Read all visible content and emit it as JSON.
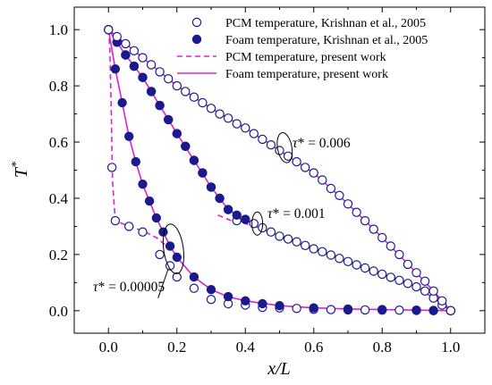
{
  "chart_data": {
    "type": "scatter",
    "xlabel": "x/L",
    "ylabel": "T*",
    "xlim": [
      -0.1,
      1.1
    ],
    "ylim": [
      -0.08,
      1.08
    ],
    "x_ticks": [
      "0.0",
      "0.2",
      "0.4",
      "0.6",
      "0.8",
      "1.0"
    ],
    "y_ticks": [
      "0.0",
      "0.2",
      "0.4",
      "0.6",
      "0.8",
      "1.0"
    ],
    "grid": false,
    "legend_position": "top-right",
    "legend": [
      {
        "label": "PCM temperature, Krishnan et al., 2005",
        "style": "open-circle"
      },
      {
        "label": "Foam temperature, Krishnan et al., 2005",
        "style": "filled-circle"
      },
      {
        "label": "PCM temperature, present work",
        "style": "dashed-line"
      },
      {
        "label": "Foam temperature, present work",
        "style": "solid-line"
      }
    ],
    "annotations": [
      {
        "text": "τ* = 0.006",
        "x": 0.52,
        "y": 0.58
      },
      {
        "text": "τ* = 0.001",
        "x": 0.45,
        "y": 0.3
      },
      {
        "text": "τ* = 0.00005",
        "x": 0.17,
        "y": 0.22
      }
    ],
    "colors": {
      "marker": "#1a1a8c",
      "line": "#e020d0"
    },
    "series": [
      {
        "name": "PCM temperature, present work",
        "group": "τ* = 0.00005",
        "style": "dashed",
        "x": [
          0.0,
          0.004,
          0.008,
          0.012,
          0.02,
          0.06,
          0.1,
          0.14,
          0.18,
          0.2
        ],
        "y": [
          1.0,
          0.93,
          0.72,
          0.46,
          0.32,
          0.3,
          0.285,
          0.26,
          0.22,
          0.2
        ]
      },
      {
        "name": "Foam temperature, present work",
        "group": "τ* = 0.00005",
        "style": "solid",
        "x": [
          0.0,
          0.02,
          0.04,
          0.06,
          0.08,
          0.1,
          0.12,
          0.14,
          0.16,
          0.18,
          0.2,
          0.25,
          0.3,
          0.35,
          0.4,
          0.5,
          0.6,
          0.7,
          0.8,
          0.9,
          1.0
        ],
        "y": [
          1.0,
          0.86,
          0.74,
          0.62,
          0.53,
          0.45,
          0.39,
          0.33,
          0.28,
          0.23,
          0.19,
          0.12,
          0.075,
          0.05,
          0.035,
          0.018,
          0.01,
          0.006,
          0.004,
          0.002,
          0.0
        ]
      },
      {
        "name": "PCM temperature, present work",
        "group": "τ* = 0.001",
        "style": "dashed",
        "x": [
          0.32,
          0.36,
          0.4,
          0.44
        ],
        "y": [
          0.34,
          0.32,
          0.31,
          0.295
        ]
      },
      {
        "name": "Foam temperature, present work",
        "group": "τ* = 0.001",
        "style": "solid",
        "x": [
          0.0,
          0.05,
          0.1,
          0.15,
          0.2,
          0.25,
          0.3,
          0.35,
          0.4,
          0.44,
          0.5,
          0.6,
          0.7,
          0.8,
          0.9,
          0.95,
          1.0
        ],
        "y": [
          1.0,
          0.91,
          0.83,
          0.73,
          0.63,
          0.535,
          0.44,
          0.36,
          0.325,
          0.295,
          0.265,
          0.22,
          0.175,
          0.13,
          0.085,
          0.045,
          0.0
        ]
      },
      {
        "name": "Foam temperature, present work",
        "group": "τ* = 0.006",
        "style": "solid",
        "x": [
          0.0,
          0.1,
          0.2,
          0.3,
          0.4,
          0.5,
          0.6,
          0.7,
          0.8,
          0.9,
          0.95,
          1.0
        ],
        "y": [
          1.0,
          0.9,
          0.8,
          0.72,
          0.65,
          0.57,
          0.49,
          0.38,
          0.26,
          0.135,
          0.07,
          0.0
        ]
      },
      {
        "name": "PCM temperature, Krishnan et al., 2005",
        "group": "τ* = 0.00005",
        "style": "open",
        "x": [
          0.0,
          0.01,
          0.02,
          0.06,
          0.1,
          0.15,
          0.18,
          0.2,
          0.25,
          0.3,
          0.35,
          0.4,
          0.45,
          0.5,
          0.55,
          0.6,
          0.65,
          0.7,
          0.75,
          0.8,
          0.85,
          0.9,
          0.95,
          1.0
        ],
        "y": [
          1.0,
          0.51,
          0.32,
          0.3,
          0.28,
          0.2,
          0.16,
          0.12,
          0.08,
          0.04,
          0.025,
          0.02,
          0.012,
          0.01,
          0.008,
          0.005,
          0.004,
          0.003,
          0.003,
          0.002,
          0.002,
          0.001,
          0.0,
          0.0
        ]
      },
      {
        "name": "Foam temperature, Krishnan et al., 2005",
        "group": "τ* = 0.00005",
        "style": "filled",
        "x": [
          0.0,
          0.02,
          0.04,
          0.06,
          0.08,
          0.1,
          0.12,
          0.14,
          0.16,
          0.18,
          0.2,
          0.25,
          0.3,
          0.35,
          0.4,
          0.45,
          0.5,
          0.6,
          0.7,
          0.8,
          0.9,
          0.95,
          1.0
        ],
        "y": [
          1.0,
          0.86,
          0.74,
          0.62,
          0.53,
          0.45,
          0.39,
          0.33,
          0.28,
          0.23,
          0.19,
          0.12,
          0.075,
          0.05,
          0.035,
          0.025,
          0.018,
          0.01,
          0.006,
          0.004,
          0.002,
          0.001,
          0.0
        ]
      },
      {
        "name": "PCM temperature, Krishnan et al., 2005",
        "group": "τ* = 0.001",
        "style": "open",
        "x": [
          0.0,
          0.025,
          0.05,
          0.075,
          0.1,
          0.125,
          0.15,
          0.175,
          0.2,
          0.225,
          0.25,
          0.275,
          0.3,
          0.325,
          0.35,
          0.375,
          0.4,
          0.425,
          0.45,
          0.475,
          0.5,
          0.525,
          0.55,
          0.575,
          0.6,
          0.625,
          0.65,
          0.675,
          0.7,
          0.725,
          0.75,
          0.775,
          0.8,
          0.825,
          0.85,
          0.875,
          0.9,
          0.925,
          0.95,
          0.975,
          1.0
        ],
        "y": [
          1.0,
          0.955,
          0.91,
          0.87,
          0.83,
          0.78,
          0.73,
          0.68,
          0.63,
          0.585,
          0.535,
          0.49,
          0.44,
          0.4,
          0.36,
          0.32,
          0.325,
          0.31,
          0.295,
          0.28,
          0.265,
          0.255,
          0.245,
          0.232,
          0.22,
          0.21,
          0.198,
          0.186,
          0.175,
          0.163,
          0.152,
          0.141,
          0.13,
          0.119,
          0.108,
          0.097,
          0.085,
          0.07,
          0.045,
          0.02,
          0.0
        ]
      },
      {
        "name": "Foam temperature, Krishnan et al., 2005",
        "group": "τ* = 0.001",
        "style": "filled",
        "x": [
          0.0,
          0.025,
          0.05,
          0.075,
          0.1,
          0.125,
          0.15,
          0.175,
          0.2,
          0.225,
          0.25,
          0.275,
          0.3,
          0.325,
          0.35,
          0.375,
          0.4
        ],
        "y": [
          1.0,
          0.955,
          0.91,
          0.87,
          0.83,
          0.78,
          0.73,
          0.68,
          0.63,
          0.585,
          0.535,
          0.49,
          0.44,
          0.4,
          0.36,
          0.34,
          0.325
        ]
      },
      {
        "name": "PCM temperature, Krishnan et al., 2005",
        "group": "τ* = 0.006",
        "style": "open",
        "x": [
          0.0,
          0.025,
          0.05,
          0.075,
          0.1,
          0.125,
          0.15,
          0.175,
          0.2,
          0.225,
          0.25,
          0.275,
          0.3,
          0.325,
          0.35,
          0.375,
          0.4,
          0.425,
          0.45,
          0.475,
          0.5,
          0.525,
          0.55,
          0.575,
          0.6,
          0.625,
          0.65,
          0.675,
          0.7,
          0.725,
          0.75,
          0.775,
          0.8,
          0.825,
          0.85,
          0.875,
          0.9,
          0.925,
          0.95,
          0.975,
          1.0
        ],
        "y": [
          1.0,
          0.975,
          0.95,
          0.925,
          0.9,
          0.875,
          0.85,
          0.825,
          0.8,
          0.78,
          0.76,
          0.74,
          0.72,
          0.7,
          0.685,
          0.665,
          0.65,
          0.63,
          0.61,
          0.59,
          0.57,
          0.55,
          0.53,
          0.51,
          0.49,
          0.465,
          0.435,
          0.41,
          0.38,
          0.35,
          0.32,
          0.29,
          0.26,
          0.23,
          0.2,
          0.165,
          0.135,
          0.105,
          0.07,
          0.035,
          0.0
        ]
      }
    ]
  }
}
